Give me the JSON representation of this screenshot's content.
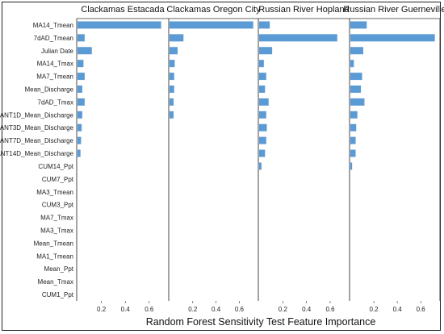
{
  "chart_data": {
    "type": "bar",
    "orientation": "horizontal",
    "xlabel": "Random Forest Sensitivity Test Feature Importance",
    "xlim": [
      0,
      0.75
    ],
    "xticks": [
      "0.2",
      "0.4",
      "0.6"
    ],
    "bar_color": "#5b9bd5",
    "categories": [
      "MA14_Tmean",
      "7dAD_Tmean",
      "Julian Date",
      "MA14_Tmax",
      "MA7_Tmean",
      "Mean_Discharge",
      "7dAD_Tmax",
      "ANT1D_Mean_Discharge",
      "ANT3D_Mean_Discharge",
      "ANT7D_Mean_Discharge",
      "ANT14D_Mean_Discharge",
      "CUM14_Ppt",
      "CUM7_Ppt",
      "MA3_Tmean",
      "CUM3_Ppt",
      "MA7_Tmax",
      "MA3_Tmax",
      "Mean_Tmean",
      "MA1_Tmean",
      "Mean_Ppt",
      "Mean_Tmax",
      "CUM1_Ppt"
    ],
    "series": [
      {
        "name": "Clackamas Estacada",
        "values": [
          0.7,
          0.06,
          0.12,
          0.05,
          0.06,
          0.04,
          0.06,
          0.04,
          0.035,
          0.03,
          0.025,
          null,
          null,
          null,
          null,
          null,
          null,
          null,
          null,
          null,
          null,
          null
        ]
      },
      {
        "name": "Clackamas Oregon City",
        "values": [
          0.72,
          0.12,
          0.07,
          0.045,
          0.04,
          0.04,
          0.035,
          0.035,
          null,
          null,
          null,
          null,
          null,
          null,
          null,
          null,
          null,
          null,
          null,
          null,
          null,
          null
        ]
      },
      {
        "name": "Russian River Hopland",
        "values": [
          0.09,
          0.66,
          0.11,
          0.04,
          0.06,
          0.05,
          0.08,
          0.06,
          0.065,
          0.06,
          0.05,
          0.02,
          null,
          null,
          null,
          null,
          null,
          null,
          null,
          null,
          null,
          null
        ]
      },
      {
        "name": "Russian River Guerneville",
        "values": [
          0.14,
          0.72,
          0.11,
          0.03,
          0.1,
          0.09,
          0.12,
          0.06,
          0.05,
          0.045,
          0.045,
          0.015,
          null,
          null,
          null,
          null,
          null,
          null,
          null,
          null,
          null,
          null
        ]
      }
    ]
  }
}
